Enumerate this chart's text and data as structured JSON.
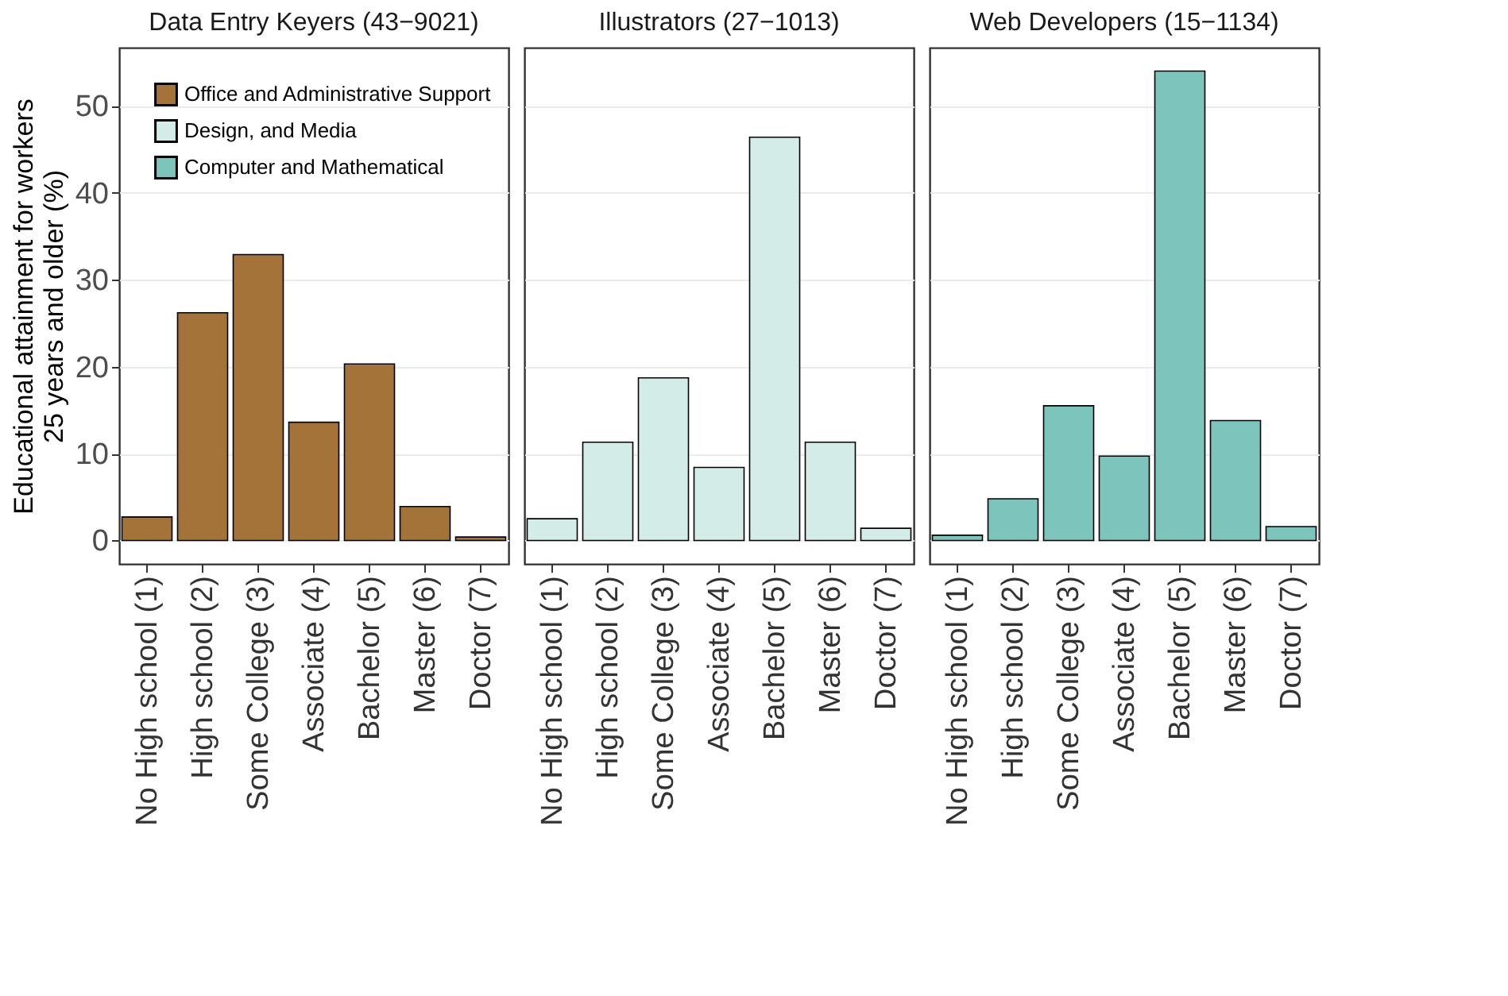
{
  "chart_data": [
    {
      "type": "bar",
      "title": "Data Entry Keyers (43−9021)",
      "ylabel": "Educational attainment for workers\n25 years and older (%)",
      "categories": [
        "No High school (1)",
        "High school (2)",
        "Some College (3)",
        "Associate (4)",
        "Bachelor (5)",
        "Master (6)",
        "Doctor (7)"
      ],
      "series": [
        {
          "name": "Office and Administrative Support",
          "color": "#a3733a",
          "values": [
            2.7,
            26.2,
            32.9,
            13.6,
            20.3,
            3.9,
            0.4
          ]
        }
      ],
      "ylim": [
        -2.7,
        56.7
      ],
      "yticks": [
        0,
        10,
        20,
        30,
        40,
        50
      ],
      "grid": "y",
      "legend": "top left"
    },
    {
      "type": "bar",
      "title": "Illustrators (27−1013)",
      "categories": [
        "No High school (1)",
        "High school (2)",
        "Some College (3)",
        "Associate (4)",
        "Bachelor (5)",
        "Master (6)",
        "Doctor (7)"
      ],
      "series": [
        {
          "name": "Design, and Media",
          "color": "#d3ece8",
          "values": [
            2.5,
            11.3,
            18.7,
            8.4,
            46.4,
            11.3,
            1.4
          ]
        }
      ],
      "ylim": [
        -2.7,
        56.7
      ],
      "yticks": [
        0,
        10,
        20,
        30,
        40,
        50
      ],
      "grid": "y",
      "tick_labels": "x"
    },
    {
      "type": "bar",
      "title": "Web Developers (15−1134)",
      "categories": [
        "No High school (1)",
        "High school (2)",
        "Some College (3)",
        "Associate (4)",
        "Bachelor (5)",
        "Master (6)",
        "Doctor (7)"
      ],
      "series": [
        {
          "name": "Computer and Mathematical",
          "color": "#7dc4bd",
          "values": [
            0.6,
            4.8,
            15.5,
            9.7,
            54.0,
            13.8,
            1.6
          ]
        }
      ],
      "ylim": [
        -2.7,
        56.7
      ],
      "yticks": [
        0,
        10,
        20,
        30,
        40,
        50
      ],
      "grid": "y",
      "tick_labels": "x"
    }
  ]
}
